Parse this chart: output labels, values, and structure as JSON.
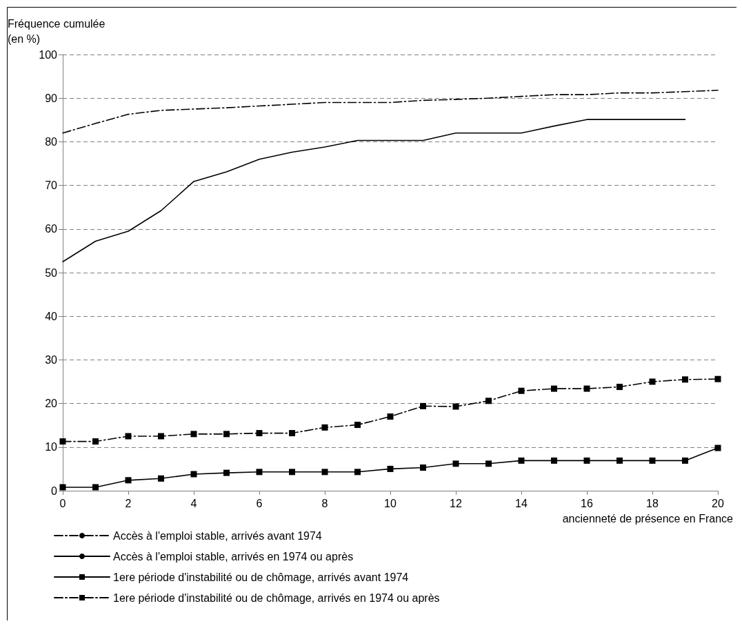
{
  "chart_data": {
    "type": "line",
    "ylabel": "Fréquence cumulée\n(en %)",
    "xlabel": "ancienneté de présence en France",
    "xlim": [
      0,
      20
    ],
    "xticks": [
      0,
      2,
      4,
      6,
      8,
      10,
      12,
      14,
      16,
      18,
      20
    ],
    "ylim": [
      0,
      100
    ],
    "yticks": [
      0,
      10,
      20,
      30,
      40,
      50,
      60,
      70,
      80,
      90,
      100
    ],
    "grid": "y",
    "legend": "bottom left",
    "series": [
      {
        "name": "Accès à l'emploi stable, arrivés avant 1974",
        "color": "#000000",
        "line_style": "dashed",
        "marker": "none",
        "x": [
          0,
          1,
          2,
          3,
          4,
          5,
          6,
          7,
          8,
          9,
          10,
          11,
          12,
          13,
          14,
          15,
          16,
          17,
          18,
          19,
          20
        ],
        "values": [
          82,
          84.2,
          86.3,
          87.2,
          87.5,
          87.8,
          88.2,
          88.6,
          89,
          89,
          89,
          89.5,
          89.7,
          90,
          90.4,
          90.8,
          90.8,
          91.2,
          91.2,
          91.5,
          91.8
        ]
      },
      {
        "name": "Accès à l'emploi stable, arrivés en 1974 ou après",
        "color": "#000000",
        "line_style": "solid",
        "marker": "none",
        "x": [
          0,
          1,
          2,
          3,
          4,
          5,
          6,
          7,
          8,
          9,
          10,
          11,
          12,
          13,
          14,
          15,
          16,
          17,
          18,
          19
        ],
        "values": [
          52.5,
          57.2,
          59.5,
          64.2,
          70.9,
          73.1,
          76,
          77.6,
          78.8,
          80.3,
          80.3,
          80.3,
          82,
          82,
          82,
          83.6,
          85.1,
          85.1,
          85.1,
          85.1
        ]
      },
      {
        "name": "1ere période d'instabilité ou de chômage, arrivés avant 1974",
        "color": "#000000",
        "line_style": "solid",
        "marker": "square",
        "x": [
          0,
          1,
          2,
          3,
          4,
          5,
          6,
          7,
          8,
          9,
          10,
          11,
          12,
          13,
          14,
          15,
          16,
          17,
          18,
          19,
          20
        ],
        "values": [
          0.8,
          0.8,
          2.4,
          2.8,
          3.8,
          4.1,
          4.3,
          4.3,
          4.3,
          4.3,
          5,
          5.3,
          6.2,
          6.2,
          6.9,
          6.9,
          6.9,
          6.9,
          6.9,
          6.9,
          9.8
        ]
      },
      {
        "name": "1ere période d'instabilité ou de chômage, arrivés en 1974 ou après",
        "color": "#000000",
        "line_style": "dashed",
        "marker": "square",
        "x": [
          0,
          1,
          2,
          3,
          4,
          5,
          6,
          7,
          8,
          9,
          10,
          11,
          12,
          13,
          14,
          15,
          16,
          17,
          18,
          19,
          20
        ],
        "values": [
          11.3,
          11.3,
          12.5,
          12.5,
          13,
          13,
          13.2,
          13.2,
          14.5,
          15.1,
          17,
          19.4,
          19.3,
          20.6,
          22.9,
          23.4,
          23.4,
          23.8,
          25,
          25.5,
          25.6
        ]
      }
    ]
  }
}
